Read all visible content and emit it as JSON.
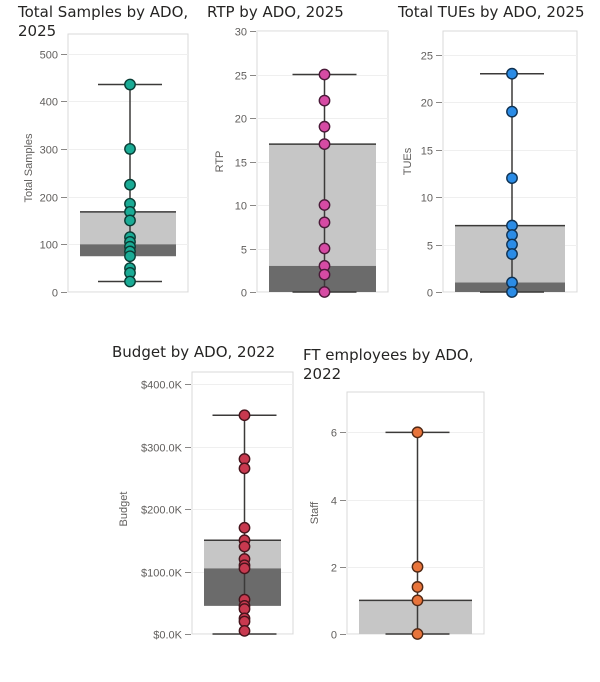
{
  "chart_data": [
    {
      "id": "samples",
      "type": "box",
      "title_lines": [
        "Total Samples by ADO,",
        "2025"
      ],
      "ylabel": "Total Samples",
      "ylim": [
        0,
        520
      ],
      "ticks": [
        0,
        100,
        200,
        300,
        400,
        500
      ],
      "tick_labels": [
        "0",
        "100",
        "200",
        "300",
        "400",
        "500"
      ],
      "whisker": [
        22,
        435
      ],
      "q1": 75,
      "median": 100,
      "q3": 168,
      "points": [
        435,
        300,
        225,
        185,
        168,
        150,
        115,
        105,
        95,
        85,
        75,
        50,
        40,
        22
      ],
      "point_color": "#1AAB95"
    },
    {
      "id": "rtp",
      "type": "box",
      "title_lines": [
        "RTP by ADO, 2025"
      ],
      "ylabel": "RTP",
      "ylim": [
        0,
        30
      ],
      "ticks": [
        0,
        5,
        10,
        15,
        20,
        25,
        30
      ],
      "tick_labels": [
        "0",
        "5",
        "10",
        "15",
        "20",
        "25",
        "30"
      ],
      "whisker": [
        0,
        25
      ],
      "q1": 0,
      "median": 3,
      "q3": 17,
      "points": [
        25,
        22,
        19,
        17,
        10,
        8,
        5,
        3,
        2,
        0
      ],
      "point_color": "#D64BA4"
    },
    {
      "id": "tues",
      "type": "box",
      "title_lines": [
        "Total TUEs by ADO, 2025"
      ],
      "ylabel": "TUEs",
      "ylim": [
        0,
        27.5
      ],
      "ticks": [
        0,
        5,
        10,
        15,
        20,
        25
      ],
      "tick_labels": [
        "0",
        "5",
        "10",
        "15",
        "20",
        "25"
      ],
      "whisker": [
        0,
        23
      ],
      "q1": 0,
      "median": 1,
      "q3": 7,
      "points": [
        23,
        19,
        12,
        7,
        6,
        5,
        4,
        1,
        0
      ],
      "point_color": "#2B8CE6"
    },
    {
      "id": "budget",
      "type": "box",
      "title_lines": [
        "Budget by ADO, 2022"
      ],
      "ylabel": "Budget",
      "ylim": [
        0,
        400000
      ],
      "ticks": [
        0,
        100000,
        200000,
        300000,
        400000
      ],
      "tick_labels": [
        "$0.0K",
        "$100.0K",
        "$200.0K",
        "$300.0K",
        "$400.0K"
      ],
      "whisker": [
        0,
        350000
      ],
      "q1": 45000,
      "median": 105000,
      "q3": 150000,
      "points": [
        350000,
        280000,
        265000,
        170000,
        150000,
        140000,
        120000,
        110000,
        105000,
        55000,
        45000,
        40000,
        25000,
        20000,
        5000
      ],
      "point_color": "#C8394F"
    },
    {
      "id": "staff",
      "type": "box",
      "title_lines": [
        "FT employees by ADO,",
        "2022"
      ],
      "ylabel": "Staff",
      "ylim": [
        0,
        7.2
      ],
      "ticks": [
        0,
        2,
        4,
        6
      ],
      "tick_labels": [
        "0",
        "2",
        "4",
        "6"
      ],
      "whisker": [
        0,
        6
      ],
      "q1": 0,
      "median": 0,
      "q3": 1,
      "points": [
        6,
        2,
        1.4,
        1,
        0
      ],
      "point_color": "#E8743B"
    }
  ]
}
